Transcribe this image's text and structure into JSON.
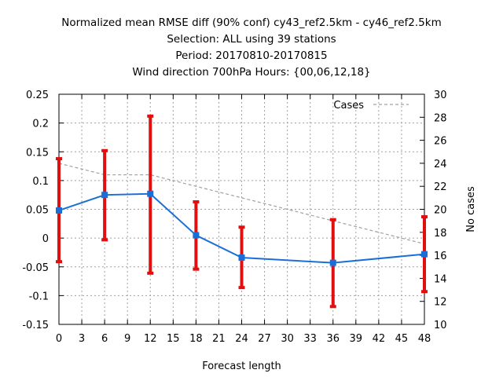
{
  "chart_data": {
    "type": "line",
    "title_lines": [
      "Normalized mean RMSE diff (90% conf) cy43_ref2.5km - cy46_ref2.5km",
      "Selection: ALL using    39 stations",
      "Period: 20170810-20170815",
      "Wind direction 700hPa   Hours: {00,06,12,18}"
    ],
    "xlabel": "Forecast length",
    "ylabel_right": "No cases",
    "xlim": [
      0,
      48
    ],
    "ylim": [
      -0.15,
      0.25
    ],
    "y2lim": [
      10,
      30
    ],
    "x_ticks": [
      "0",
      "3",
      "6",
      "9",
      "12",
      "15",
      "18",
      "21",
      "24",
      "27",
      "30",
      "33",
      "36",
      "39",
      "42",
      "45",
      "48"
    ],
    "y_ticks": [
      "0.25",
      "0.2",
      "0.15",
      "0.1",
      "0.05",
      "0",
      "-0.05",
      "-0.1",
      "-0.15"
    ],
    "y2_ticks": [
      "30",
      "28",
      "26",
      "24",
      "22",
      "20",
      "18",
      "16",
      "14",
      "12",
      "10"
    ],
    "grid": true,
    "legend": {
      "placement": "top-right",
      "entries": [
        "Cases"
      ]
    },
    "colors": {
      "diff_line": "#1a6fd6",
      "error_bar": "#e01010",
      "cases_line": "#a0a0a0"
    },
    "series": [
      {
        "x": [
          0,
          6,
          12,
          18,
          24,
          36,
          48
        ],
        "values": [
          0.048,
          0.075,
          0.077,
          0.005,
          -0.034,
          -0.043,
          -0.028
        ],
        "err_low": [
          -0.041,
          -0.003,
          -0.061,
          -0.054,
          -0.086,
          -0.119,
          -0.093
        ],
        "err_high": [
          0.138,
          0.152,
          0.212,
          0.063,
          0.019,
          0.032,
          0.037
        ]
      },
      {
        "name": "Cases",
        "axis": "right",
        "x": [
          0,
          6,
          12,
          18,
          24,
          36,
          48
        ],
        "values": [
          24,
          23,
          23,
          22,
          21,
          19,
          17
        ]
      }
    ]
  }
}
